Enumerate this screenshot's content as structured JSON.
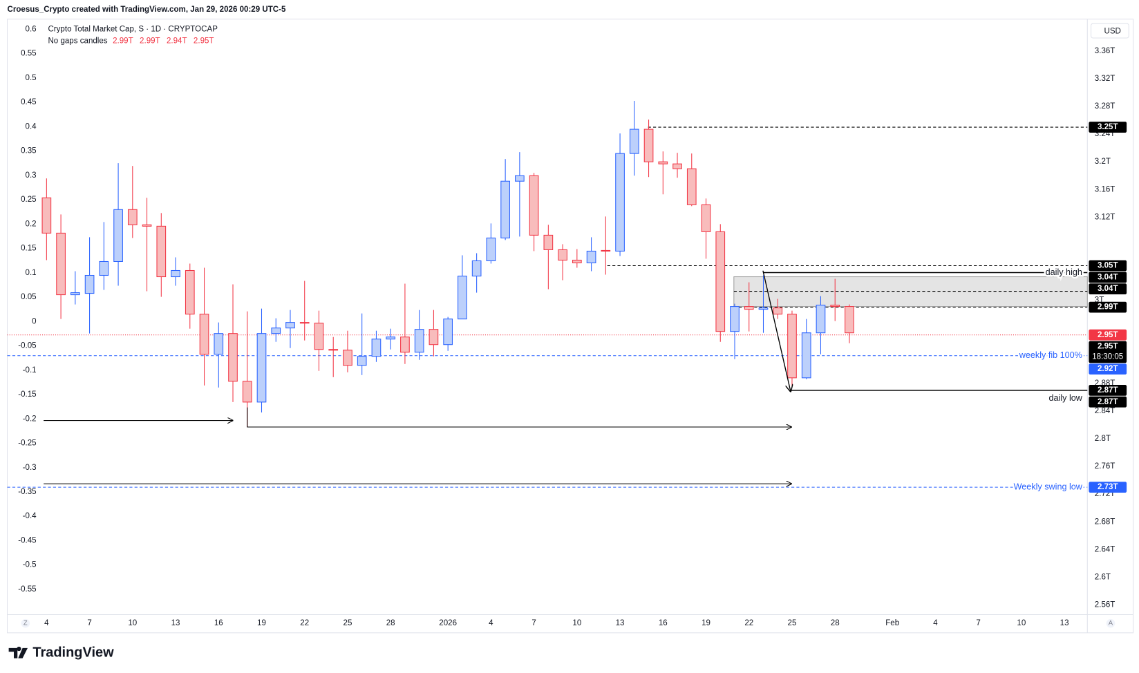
{
  "header": "Croesus_Crypto created with TradingView.com, Jan 29, 2026 00:29 UTC-5",
  "footer": "TradingView",
  "currency": "USD",
  "axis_buttons": [
    "Z",
    "A"
  ],
  "chart_data": {
    "type": "candlestick",
    "title": "Crypto Total Market Cap, S · 1D · CRYPTOCAP",
    "subtitle": "No gaps candles",
    "ohlc_labels": [
      "2.99T",
      "2.99T",
      "2.94T",
      "2.95T"
    ],
    "up_color": "#2962ff",
    "up_fill": "#bcd0fb",
    "down_color": "#f23645",
    "down_fill": "#f8bcbc",
    "open": [
      3.148,
      3.097,
      3.008,
      3.01,
      3.036,
      3.056,
      3.131,
      3.109,
      3.107,
      3.034,
      3.043,
      2.98,
      2.922,
      2.952,
      2.883,
      2.853,
      2.952,
      2.96,
      2.968,
      2.967,
      2.929,
      2.928,
      2.906,
      2.919,
      2.944,
      2.947,
      2.925,
      2.958,
      2.936,
      2.973,
      3.035,
      3.057,
      3.09,
      3.172,
      3.18,
      3.094,
      3.073,
      3.058,
      3.054,
      3.072,
      3.071,
      3.212,
      3.247,
      3.2,
      3.197,
      3.19,
      3.138,
      3.099,
      2.955,
      2.991,
      2.987,
      2.989,
      2.98,
      2.888,
      2.953,
      2.993,
      2.991
    ],
    "high": [
      3.176,
      3.124,
      3.042,
      3.091,
      3.113,
      3.198,
      3.194,
      3.148,
      3.126,
      3.062,
      3.053,
      3.047,
      2.968,
      3.023,
      2.984,
      2.988,
      2.974,
      2.986,
      3.028,
      2.985,
      2.947,
      2.956,
      2.981,
      2.956,
      2.959,
      3.024,
      2.986,
      2.986,
      2.976,
      3.065,
      3.068,
      3.111,
      3.204,
      3.214,
      3.184,
      3.109,
      3.081,
      3.074,
      3.091,
      3.121,
      3.241,
      3.288,
      3.261,
      3.215,
      3.213,
      3.212,
      3.147,
      3.11,
      2.995,
      3.026,
      3.036,
      3.002,
      2.985,
      2.973,
      3.006,
      3.031,
      2.994
    ],
    "low": [
      3.058,
      2.973,
      2.994,
      2.952,
      3.015,
      3.021,
      3.09,
      3.013,
      3.005,
      3.021,
      2.959,
      2.877,
      2.874,
      2.853,
      2.817,
      2.838,
      2.94,
      2.931,
      2.942,
      2.898,
      2.889,
      2.896,
      2.892,
      2.911,
      2.929,
      2.908,
      2.914,
      2.919,
      2.927,
      2.973,
      3.011,
      3.053,
      3.087,
      3.092,
      3.071,
      3.016,
      3.029,
      3.047,
      3.042,
      3.037,
      3.064,
      3.18,
      3.178,
      3.153,
      3.177,
      3.136,
      3.06,
      2.94,
      2.915,
      2.955,
      2.953,
      2.973,
      2.874,
      2.886,
      2.922,
      2.97,
      2.938
    ],
    "close": [
      3.097,
      3.008,
      3.011,
      3.036,
      3.056,
      3.131,
      3.109,
      3.107,
      3.034,
      3.043,
      2.98,
      2.922,
      2.952,
      2.883,
      2.853,
      2.952,
      2.96,
      2.968,
      2.967,
      2.929,
      2.928,
      2.906,
      2.919,
      2.944,
      2.947,
      2.925,
      2.958,
      2.936,
      2.973,
      3.035,
      3.057,
      3.09,
      3.172,
      3.18,
      3.094,
      3.073,
      3.058,
      3.054,
      3.071,
      3.071,
      3.212,
      3.247,
      3.2,
      3.197,
      3.19,
      3.138,
      3.099,
      2.955,
      2.991,
      2.987,
      2.989,
      2.98,
      2.888,
      2.953,
      2.993,
      2.991,
      2.953
    ],
    "xlim": [
      -2.74,
      72.6
    ],
    "xticks": [
      {
        "value": 0,
        "label": "4"
      },
      {
        "value": 3,
        "label": "7"
      },
      {
        "value": 6,
        "label": "10"
      },
      {
        "value": 9,
        "label": "13"
      },
      {
        "value": 12,
        "label": "16"
      },
      {
        "value": 15,
        "label": "19"
      },
      {
        "value": 18,
        "label": "22"
      },
      {
        "value": 21,
        "label": "25"
      },
      {
        "value": 24,
        "label": "28"
      },
      {
        "value": 28,
        "label": "2026"
      },
      {
        "value": 31,
        "label": "4"
      },
      {
        "value": 34,
        "label": "7"
      },
      {
        "value": 37,
        "label": "10"
      },
      {
        "value": 40,
        "label": "13"
      },
      {
        "value": 43,
        "label": "16"
      },
      {
        "value": 46,
        "label": "19"
      },
      {
        "value": 49,
        "label": "22"
      },
      {
        "value": 52,
        "label": "25"
      },
      {
        "value": 55,
        "label": "28"
      },
      {
        "value": 59,
        "label": "Feb"
      },
      {
        "value": 62,
        "label": "4"
      },
      {
        "value": 65,
        "label": "7"
      },
      {
        "value": 68,
        "label": "10"
      },
      {
        "value": 71,
        "label": "13"
      }
    ],
    "ylim": [
      2.546,
      3.404
    ],
    "yticks": [
      {
        "value": 3.36,
        "label": "3.36T"
      },
      {
        "value": 3.32,
        "label": "3.32T"
      },
      {
        "value": 3.28,
        "label": "3.28T"
      },
      {
        "value": 3.24,
        "label": "3.24T"
      },
      {
        "value": 3.2,
        "label": "3.2T"
      },
      {
        "value": 3.16,
        "label": "3.16T"
      },
      {
        "value": 3.12,
        "label": "3.12T"
      },
      {
        "value": 3,
        "label": "3T"
      },
      {
        "value": 2.88,
        "label": "2.88T"
      },
      {
        "value": 2.84,
        "label": "2.84T"
      },
      {
        "value": 2.8,
        "label": "2.8T"
      },
      {
        "value": 2.76,
        "label": "2.76T"
      },
      {
        "value": 2.72,
        "label": "2.72T"
      },
      {
        "value": 2.68,
        "label": "2.68T"
      },
      {
        "value": 2.64,
        "label": "2.64T"
      },
      {
        "value": 2.6,
        "label": "2.6T"
      },
      {
        "value": 2.56,
        "label": "2.56T"
      }
    ],
    "y2lim": [
      -0.602,
      0.618
    ],
    "y2ticks": [
      0.6,
      0.55,
      0.5,
      0.45,
      0.4,
      0.35,
      0.3,
      0.25,
      0.2,
      0.15,
      0.1,
      0.05,
      0,
      -0.05,
      -0.1,
      -0.15,
      -0.2,
      -0.25,
      -0.3,
      -0.35,
      -0.4,
      -0.45,
      -0.5,
      -0.55
    ],
    "grid": false,
    "zone": [
      2.991,
      3.034
    ],
    "levels": [
      {
        "value": 3.25,
        "color": "#000000",
        "dash": "dashed"
      },
      {
        "value": 3.05,
        "color": "#000000",
        "dash": "dashed"
      },
      {
        "value": 3.04,
        "color": "#000000",
        "dash": "solid",
        "label": "daily high"
      },
      {
        "value": 3.013,
        "color": "#000000",
        "dash": "dashed"
      },
      {
        "value": 2.99,
        "color": "#000000",
        "dash": "dashed"
      },
      {
        "value": 2.95,
        "color": "#f23645",
        "dash": "dotted"
      },
      {
        "value": 2.92,
        "color": "#2962ff",
        "dash": "dashed",
        "label": "weekly fib 100%"
      },
      {
        "value": 2.87,
        "color": "#000000",
        "dash": "solid",
        "label": "daily low"
      },
      {
        "value": 2.73,
        "color": "#2962ff",
        "dash": "dashed",
        "label": "Weekly swing low"
      }
    ],
    "price_labels": [
      {
        "value": 3.25,
        "label": "3.25T",
        "color": "#000000"
      },
      {
        "value": 3.05,
        "label": "3.05T",
        "color": "#000000"
      },
      {
        "value": 3.04,
        "label": "3.04T",
        "color": "#000000"
      },
      {
        "value": 3.04,
        "label": "3.04T",
        "color": "#000000"
      },
      {
        "value": 2.99,
        "label": "2.99T",
        "color": "#000000"
      },
      {
        "value": 2.95,
        "label": "2.95T",
        "color": "#f23645"
      },
      {
        "value": 2.95,
        "label": "2.95T",
        "color": "#000000"
      },
      {
        "value": 2.92,
        "label": "2.92T",
        "color": "#2962ff"
      },
      {
        "value": 2.87,
        "label": "2.87T",
        "color": "#000000"
      },
      {
        "value": 2.87,
        "label": "2.87T",
        "color": "#000000"
      },
      {
        "value": 2.73,
        "label": "2.73T",
        "color": "#2962ff"
      }
    ],
    "countdown": "18:30:05"
  }
}
